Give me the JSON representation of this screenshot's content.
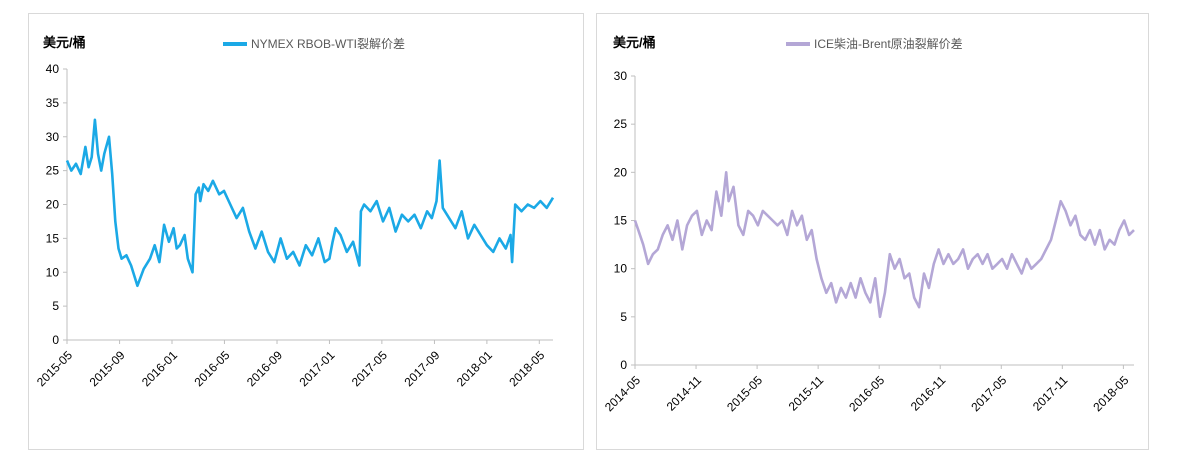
{
  "chart_data": [
    {
      "type": "line",
      "unit_label": "美元/桶",
      "legend": "NYMEX RBOB-WTI裂解价差",
      "color": "#1ba9e6",
      "ylim": [
        0,
        40
      ],
      "yticks": [
        "0",
        "5",
        "10",
        "15",
        "20",
        "25",
        "30",
        "35",
        "40"
      ],
      "xlim": [
        2015.333,
        2018.42
      ],
      "xticks": [
        {
          "label": "2015-05",
          "t": 2015.333
        },
        {
          "label": "2015-09",
          "t": 2015.667
        },
        {
          "label": "2016-01",
          "t": 2016.0
        },
        {
          "label": "2016-05",
          "t": 2016.333
        },
        {
          "label": "2016-09",
          "t": 2016.667
        },
        {
          "label": "2017-01",
          "t": 2017.0
        },
        {
          "label": "2017-05",
          "t": 2017.333
        },
        {
          "label": "2017-09",
          "t": 2017.667
        },
        {
          "label": "2018-01",
          "t": 2018.0
        },
        {
          "label": "2018-05",
          "t": 2018.333
        }
      ],
      "series": [
        {
          "name": "NYMEX RBOB-WTI裂解价差",
          "x": [
            2015.333,
            2015.36,
            2015.39,
            2015.42,
            2015.45,
            2015.47,
            2015.49,
            2015.51,
            2015.53,
            2015.55,
            2015.57,
            2015.6,
            2015.62,
            2015.64,
            2015.66,
            2015.68,
            2015.71,
            2015.74,
            2015.78,
            2015.82,
            2015.86,
            2015.89,
            2015.92,
            2015.95,
            2015.98,
            2016.01,
            2016.03,
            2016.05,
            2016.08,
            2016.1,
            2016.13,
            2016.15,
            2016.17,
            2016.18,
            2016.2,
            2016.23,
            2016.26,
            2016.3,
            2016.33,
            2016.37,
            2016.41,
            2016.45,
            2016.49,
            2016.53,
            2016.57,
            2016.61,
            2016.65,
            2016.69,
            2016.73,
            2016.77,
            2016.81,
            2016.85,
            2016.89,
            2016.93,
            2016.97,
            2017.0,
            2017.02,
            2017.04,
            2017.07,
            2017.11,
            2017.15,
            2017.19,
            2017.2,
            2017.22,
            2017.26,
            2017.3,
            2017.34,
            2017.38,
            2017.42,
            2017.46,
            2017.5,
            2017.54,
            2017.58,
            2017.62,
            2017.65,
            2017.68,
            2017.7,
            2017.72,
            2017.76,
            2017.8,
            2017.84,
            2017.88,
            2017.92,
            2017.96,
            2018.0,
            2018.04,
            2018.08,
            2018.12,
            2018.15,
            2018.16,
            2018.18,
            2018.22,
            2018.26,
            2018.3,
            2018.34,
            2018.38,
            2018.42
          ],
          "values": [
            26.5,
            25.0,
            26.0,
            24.5,
            28.5,
            25.5,
            27.0,
            32.5,
            27.5,
            25.0,
            27.5,
            30.0,
            24.5,
            17.5,
            13.5,
            12.0,
            12.5,
            11.0,
            8.0,
            10.5,
            12.0,
            14.0,
            11.5,
            17.0,
            14.5,
            16.5,
            13.5,
            14.0,
            15.5,
            12.0,
            10.0,
            21.5,
            22.5,
            20.5,
            23.0,
            22.0,
            23.5,
            21.5,
            22.0,
            20.0,
            18.0,
            19.5,
            16.0,
            13.5,
            16.0,
            13.0,
            11.5,
            15.0,
            12.0,
            13.0,
            11.0,
            14.0,
            12.5,
            15.0,
            11.5,
            12.0,
            14.5,
            16.5,
            15.5,
            13.0,
            14.5,
            11.0,
            19.0,
            20.0,
            19.0,
            20.5,
            17.5,
            19.5,
            16.0,
            18.5,
            17.5,
            18.5,
            16.5,
            19.0,
            18.0,
            20.5,
            26.5,
            19.5,
            18.0,
            16.5,
            19.0,
            15.0,
            17.0,
            15.5,
            14.0,
            13.0,
            15.0,
            13.5,
            15.5,
            11.5,
            20.0,
            19.0,
            20.0,
            19.5,
            20.5,
            19.5,
            21.0
          ]
        }
      ]
    },
    {
      "type": "line",
      "unit_label": "美元/桶",
      "legend": "ICE柴油-Brent原油裂解价差",
      "color": "#b4a7d6",
      "ylim": [
        0,
        30
      ],
      "yticks": [
        "0",
        "5",
        "10",
        "15",
        "20",
        "25",
        "30"
      ],
      "xlim": [
        2014.333,
        2018.42
      ],
      "xticks": [
        {
          "label": "2014-05",
          "t": 2014.333
        },
        {
          "label": "2014-11",
          "t": 2014.833
        },
        {
          "label": "2015-05",
          "t": 2015.333
        },
        {
          "label": "2015-11",
          "t": 2015.833
        },
        {
          "label": "2016-05",
          "t": 2016.333
        },
        {
          "label": "2016-11",
          "t": 2016.833
        },
        {
          "label": "2017-05",
          "t": 2017.333
        },
        {
          "label": "2017-11",
          "t": 2017.833
        },
        {
          "label": "2018-05",
          "t": 2018.333
        }
      ],
      "series": [
        {
          "name": "ICE柴油-Brent原油裂解价差",
          "x": [
            2014.333,
            2014.36,
            2014.4,
            2014.44,
            2014.48,
            2014.52,
            2014.56,
            2014.6,
            2014.64,
            2014.68,
            2014.72,
            2014.76,
            2014.8,
            2014.84,
            2014.88,
            2014.92,
            2014.96,
            2015.0,
            2015.04,
            2015.08,
            2015.1,
            2015.14,
            2015.18,
            2015.22,
            2015.26,
            2015.3,
            2015.34,
            2015.38,
            2015.42,
            2015.46,
            2015.5,
            2015.54,
            2015.58,
            2015.62,
            2015.66,
            2015.7,
            2015.74,
            2015.78,
            2015.82,
            2015.86,
            2015.9,
            2015.94,
            2015.98,
            2016.02,
            2016.06,
            2016.1,
            2016.14,
            2016.18,
            2016.22,
            2016.26,
            2016.3,
            2016.34,
            2016.38,
            2016.42,
            2016.46,
            2016.5,
            2016.54,
            2016.58,
            2016.62,
            2016.66,
            2016.7,
            2016.74,
            2016.78,
            2016.82,
            2016.86,
            2016.9,
            2016.94,
            2016.98,
            2017.02,
            2017.06,
            2017.1,
            2017.14,
            2017.18,
            2017.22,
            2017.26,
            2017.3,
            2017.34,
            2017.38,
            2017.42,
            2017.46,
            2017.5,
            2017.54,
            2017.58,
            2017.62,
            2017.66,
            2017.7,
            2017.74,
            2017.78,
            2017.82,
            2017.86,
            2017.9,
            2017.94,
            2017.98,
            2018.02,
            2018.06,
            2018.1,
            2018.14,
            2018.18,
            2018.22,
            2018.26,
            2018.3,
            2018.34,
            2018.38,
            2018.42
          ],
          "values": [
            15.0,
            14.0,
            12.5,
            10.5,
            11.5,
            12.0,
            13.5,
            14.5,
            13.0,
            15.0,
            12.0,
            14.5,
            15.5,
            16.0,
            13.5,
            15.0,
            14.0,
            18.0,
            15.5,
            20.0,
            17.0,
            18.5,
            14.5,
            13.5,
            16.0,
            15.5,
            14.5,
            16.0,
            15.5,
            15.0,
            14.5,
            15.0,
            13.5,
            16.0,
            14.5,
            15.5,
            13.0,
            14.0,
            11.0,
            9.0,
            7.5,
            8.5,
            6.5,
            8.0,
            7.0,
            8.5,
            7.0,
            9.0,
            7.5,
            6.5,
            9.0,
            5.0,
            7.5,
            11.5,
            10.0,
            11.0,
            9.0,
            9.5,
            7.0,
            6.0,
            9.5,
            8.0,
            10.5,
            12.0,
            10.5,
            11.5,
            10.5,
            11.0,
            12.0,
            10.0,
            11.0,
            11.5,
            10.5,
            11.5,
            10.0,
            10.5,
            11.0,
            10.0,
            11.5,
            10.5,
            9.5,
            11.0,
            10.0,
            10.5,
            11.0,
            12.0,
            13.0,
            15.0,
            17.0,
            16.0,
            14.5,
            15.5,
            13.5,
            13.0,
            14.0,
            12.5,
            14.0,
            12.0,
            13.0,
            12.5,
            14.0,
            15.0,
            13.5,
            14.0
          ]
        }
      ]
    }
  ]
}
